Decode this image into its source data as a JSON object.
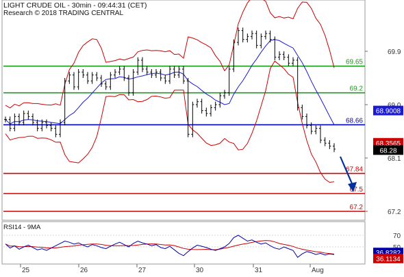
{
  "header": {
    "title": "LIGHT CRUDE OIL - 30min - 09:44:31 (CET)",
    "copyright": "Research © 2018 TRADING CENTRAL"
  },
  "colors": {
    "price": "#000000",
    "bollinger": "#cc0000",
    "ma": "#1a1ad6",
    "support": "#d40000",
    "resistance": "#1a9a1a",
    "pivot": "#0000cc",
    "arrow": "#0030a0",
    "rsi": "#0000aa",
    "rsi_ma": "#cc0000",
    "axis_text": "#333333",
    "grid": "#c8c8c8"
  },
  "chart_data": [
    {
      "type": "line",
      "name": "price-panel",
      "y_axis": {
        "ticks": [
          69.9,
          69.0,
          68.1,
          67.2
        ]
      },
      "x_axis": {
        "ticks": [
          "25",
          "26",
          "27",
          "30",
          "31",
          "Aug"
        ]
      },
      "levels": [
        {
          "value": 69.65,
          "label": "69.65",
          "kind": "resistance"
        },
        {
          "value": 69.2,
          "label": "69.2",
          "kind": "resistance"
        },
        {
          "value": 68.66,
          "label": "68.66",
          "kind": "pivot"
        },
        {
          "value": 67.84,
          "label": "67.84",
          "kind": "support"
        },
        {
          "value": 67.5,
          "label": "67.5",
          "kind": "support"
        },
        {
          "value": 67.2,
          "label": "67.2",
          "kind": "support"
        }
      ],
      "value_badges": [
        {
          "value": 68.9008,
          "label": "68.9008",
          "kind": "ma"
        },
        {
          "value": 68.3565,
          "label": "68.3565",
          "kind": "upper"
        },
        {
          "value": 68.28,
          "label": "68.28",
          "kind": "last"
        }
      ],
      "price_close": [
        68.75,
        68.6,
        68.8,
        68.7,
        68.85,
        68.8,
        68.7,
        68.6,
        68.7,
        68.65,
        68.6,
        68.5,
        68.7,
        69.4,
        69.5,
        69.3,
        69.55,
        69.5,
        69.4,
        69.5,
        69.45,
        69.35,
        69.3,
        69.5,
        69.55,
        69.6,
        69.45,
        69.2,
        69.55,
        69.75,
        69.6,
        69.55,
        69.5,
        69.55,
        69.45,
        69.4,
        69.6,
        69.5,
        69.6,
        69.4,
        68.5,
        69.0,
        69.05,
        68.9,
        68.85,
        68.95,
        69.0,
        69.15,
        69.2,
        69.6,
        70.05,
        70.25,
        70.1,
        70.15,
        70.2,
        70.0,
        70.15,
        70.2,
        70.1,
        69.8,
        69.85,
        69.8,
        69.7,
        69.75,
        68.95,
        68.8,
        68.65,
        68.55,
        68.6,
        68.4,
        68.35,
        68.3,
        68.25
      ]
    },
    {
      "type": "line",
      "name": "rsi-panel",
      "title": "RSI14 - 9MA",
      "y_axis": {
        "ticks": [
          70,
          50
        ]
      },
      "values": [
        55,
        48,
        52,
        46,
        50,
        53,
        49,
        45,
        47,
        44,
        48,
        52,
        56,
        60,
        58,
        55,
        57,
        53,
        50,
        54,
        52,
        49,
        47,
        51,
        55,
        58,
        54,
        50,
        56,
        60,
        57,
        55,
        52,
        54,
        49,
        47,
        51,
        45,
        39,
        35,
        42,
        48,
        53,
        51,
        49,
        46,
        44,
        47,
        50,
        56,
        66,
        70,
        65,
        60,
        62,
        58,
        55,
        57,
        52,
        48,
        46,
        50,
        47,
        44,
        32,
        38,
        42,
        40,
        37,
        39,
        36,
        38,
        37
      ],
      "value_badges": [
        {
          "value": 36.8282,
          "label": "36.8282",
          "kind": "rsi"
        },
        {
          "value": 36.1134,
          "label": "36.1134",
          "kind": "rsi_ma"
        }
      ]
    }
  ]
}
